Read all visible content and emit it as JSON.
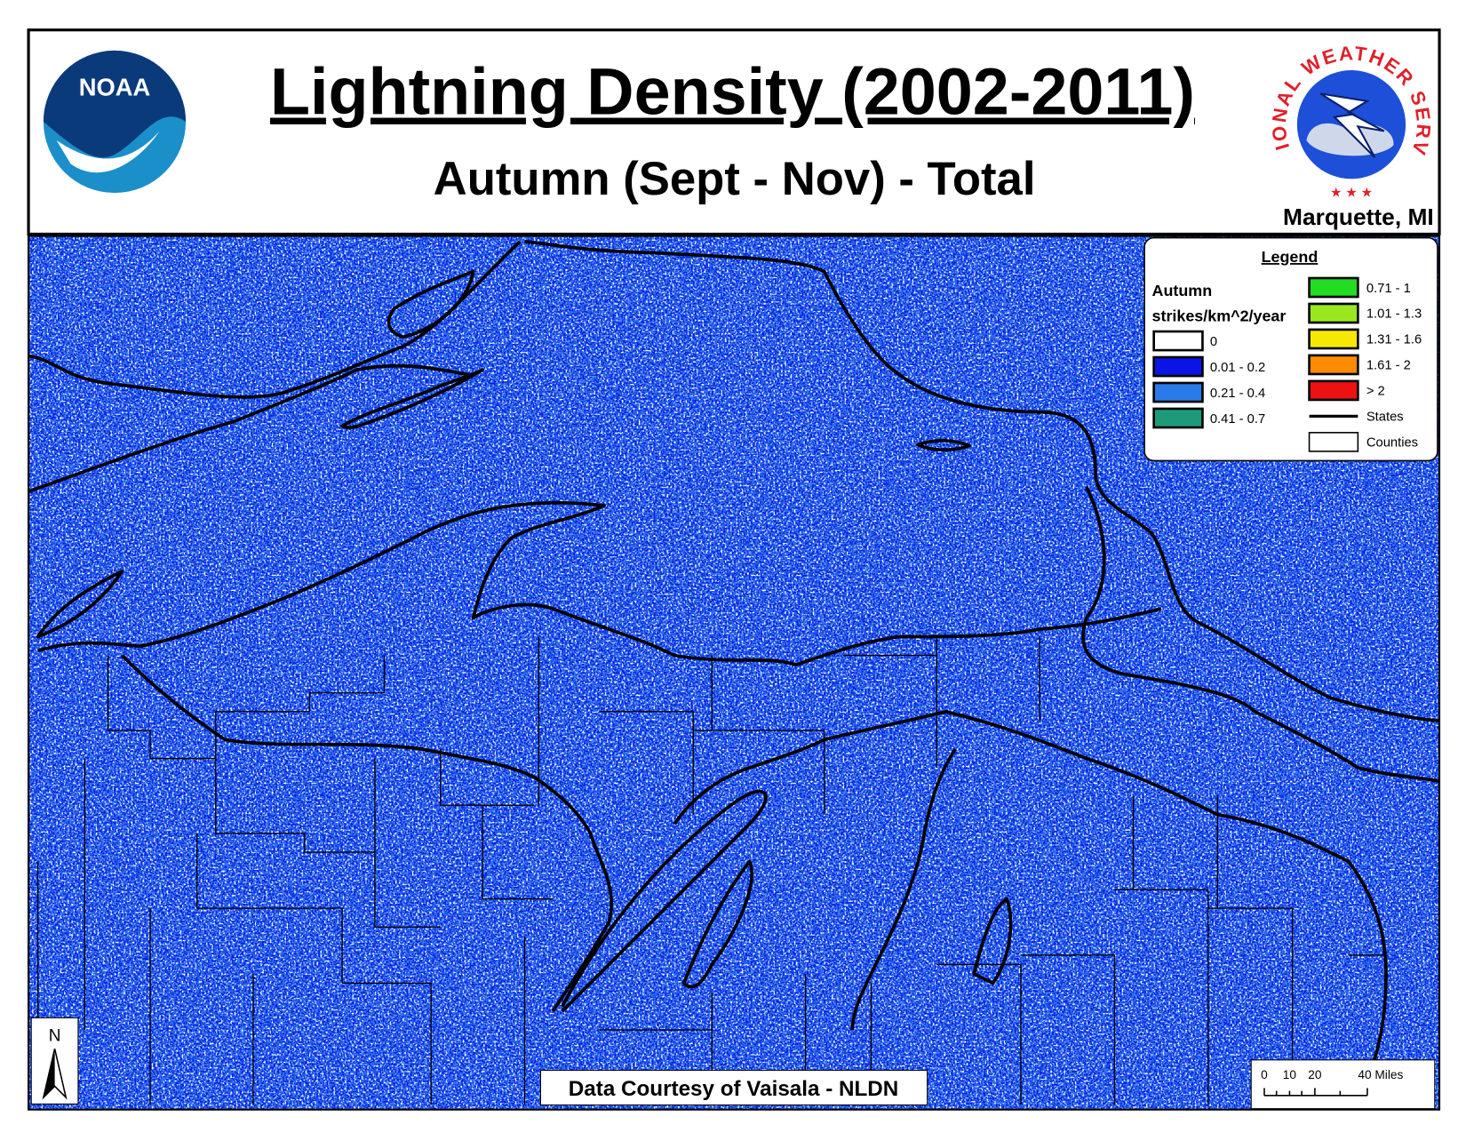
{
  "header": {
    "title": "Lightning Density (2002-2011)",
    "subtitle": "Autumn (Sept - Nov) - Total",
    "office": "Marquette, MI",
    "noaa_logo": "NOAA",
    "nws_logo": "NATIONAL WEATHER SERVICE"
  },
  "legend": {
    "title": "Legend",
    "season": "Autumn",
    "units": "strikes/km^2/year",
    "items": [
      {
        "label": "0",
        "color": "#ffffff"
      },
      {
        "label": "0.01 - 0.2",
        "color": "#0a14e6"
      },
      {
        "label": "0.21 - 0.4",
        "color": "#2a7ae8"
      },
      {
        "label": "0.41 - 0.7",
        "color": "#1e9a7a"
      },
      {
        "label": "0.71 - 1",
        "color": "#22dd22"
      },
      {
        "label": "1.01 - 1.3",
        "color": "#99e81e"
      },
      {
        "label": "1.31 - 1.6",
        "color": "#f7e800"
      },
      {
        "label": "1.61 - 2",
        "color": "#ff8c00"
      },
      {
        "label": "> 2",
        "color": "#ee1111"
      },
      {
        "label": "States",
        "symbol": "line"
      },
      {
        "label": "Counties",
        "symbol": "box"
      }
    ]
  },
  "north_arrow": "N",
  "credit": "Data Courtesy of Vaisala - NLDN",
  "scale_bar": [
    "0",
    "10",
    "20",
    "40 Miles"
  ]
}
